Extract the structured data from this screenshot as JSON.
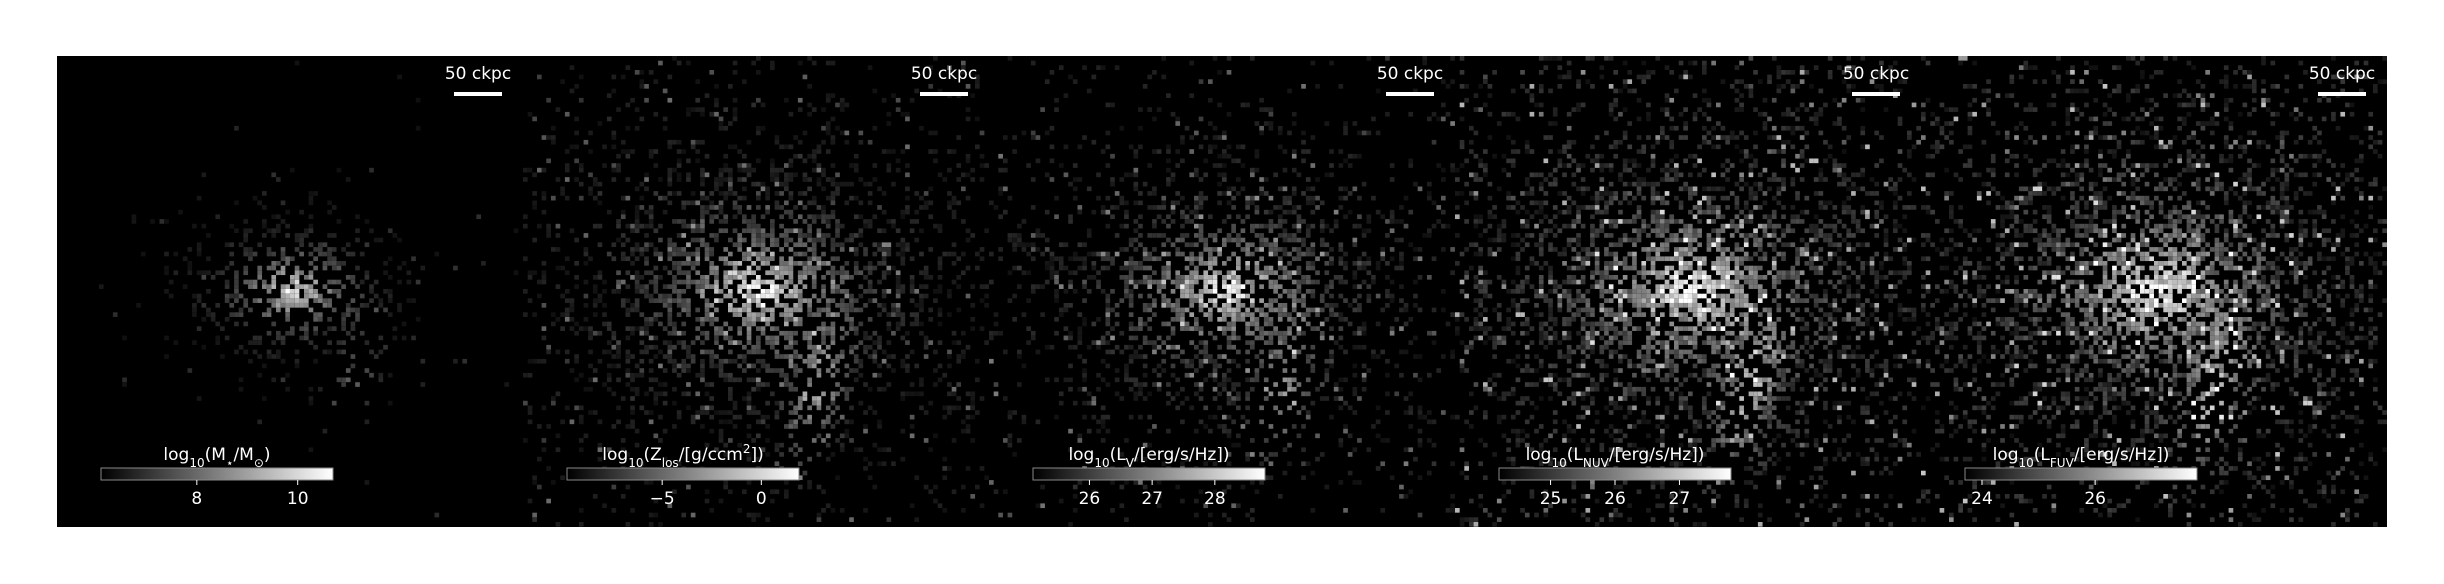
{
  "panels": [
    {
      "scale_bar": "50 ckpc",
      "colorbar": {
        "label": [
          {
            "text": "log"
          },
          {
            "text": "10",
            "sub": true
          },
          {
            "text": "(M"
          },
          {
            "text": "⋆",
            "sub": true
          },
          {
            "text": "/M"
          },
          {
            "text": "⊙",
            "sub": true
          },
          {
            "text": ")"
          }
        ],
        "lim": [
          6.1,
          10.7
        ],
        "ticks": [
          8,
          10
        ]
      }
    },
    {
      "scale_bar": "50 ckpc",
      "colorbar": {
        "label": [
          {
            "text": "log"
          },
          {
            "text": "10",
            "sub": true
          },
          {
            "text": "(Z"
          },
          {
            "text": "los",
            "sub": true
          },
          {
            "text": "/[g/ccm"
          },
          {
            "text": "2",
            "sup": true
          },
          {
            "text": "])"
          }
        ],
        "lim": [
          -9.8,
          1.9
        ],
        "ticks": [
          {
            "value": -5,
            "label": "−5"
          },
          0
        ]
      }
    },
    {
      "scale_bar": "50 ckpc",
      "colorbar": {
        "label": [
          {
            "text": "log"
          },
          {
            "text": "10",
            "sub": true
          },
          {
            "text": "(L"
          },
          {
            "text": "V",
            "sub": true
          },
          {
            "text": "/[erg/s/Hz])"
          }
        ],
        "lim": [
          25.1,
          28.8
        ],
        "ticks": [
          26,
          27,
          28
        ]
      }
    },
    {
      "scale_bar": "50 ckpc",
      "colorbar": {
        "label": [
          {
            "text": "log"
          },
          {
            "text": "10",
            "sub": true
          },
          {
            "text": "(L"
          },
          {
            "text": "NUV",
            "sub": true
          },
          {
            "text": "/[erg/s/Hz])"
          }
        ],
        "lim": [
          24.2,
          27.8
        ],
        "ticks": [
          25,
          26,
          27
        ]
      }
    },
    {
      "scale_bar": "50 ckpc",
      "colorbar": {
        "label": [
          {
            "text": "log"
          },
          {
            "text": "10",
            "sub": true
          },
          {
            "text": "(L"
          },
          {
            "text": "FUV",
            "sub": true
          },
          {
            "text": "/[erg/s/Hz])"
          }
        ],
        "lim": [
          23.7,
          27.8
        ],
        "ticks": [
          24,
          26
        ]
      }
    }
  ]
}
